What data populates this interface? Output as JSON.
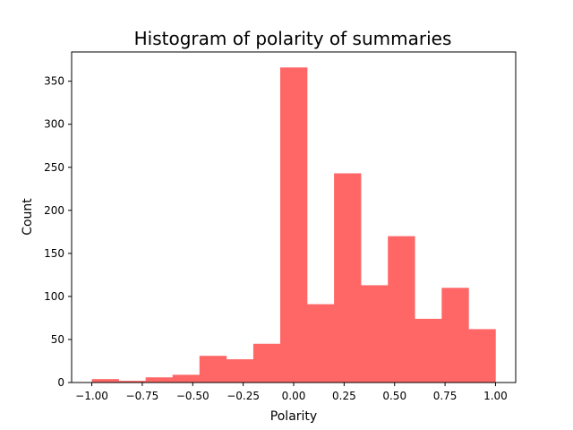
{
  "chart_data": {
    "type": "bar",
    "title": "Histogram of polarity of summaries",
    "xlabel": "Polarity",
    "ylabel": "Count",
    "bin_edges": [
      -1.0,
      -0.8667,
      -0.7333,
      -0.6,
      -0.4667,
      -0.3333,
      -0.2,
      -0.0667,
      0.0667,
      0.2,
      0.3333,
      0.4667,
      0.6,
      0.7333,
      0.8667,
      1.0
    ],
    "values": [
      4,
      2,
      6,
      9,
      31,
      27,
      45,
      366,
      91,
      243,
      113,
      170,
      74,
      110,
      62
    ],
    "xlim": [
      -1.1,
      1.1
    ],
    "ylim": [
      0,
      384
    ],
    "xticks": [
      -1.0,
      -0.75,
      -0.5,
      -0.25,
      0.0,
      0.25,
      0.5,
      0.75,
      1.0
    ],
    "xtick_labels": [
      "−1.00",
      "−0.75",
      "−0.50",
      "−0.25",
      "0.00",
      "0.25",
      "0.50",
      "0.75",
      "1.00"
    ],
    "yticks": [
      0,
      50,
      100,
      150,
      200,
      250,
      300,
      350
    ],
    "ytick_labels": [
      "0",
      "50",
      "100",
      "150",
      "200",
      "250",
      "300",
      "350"
    ],
    "bar_color": "#ff6666",
    "grid": false,
    "legend": "none"
  }
}
